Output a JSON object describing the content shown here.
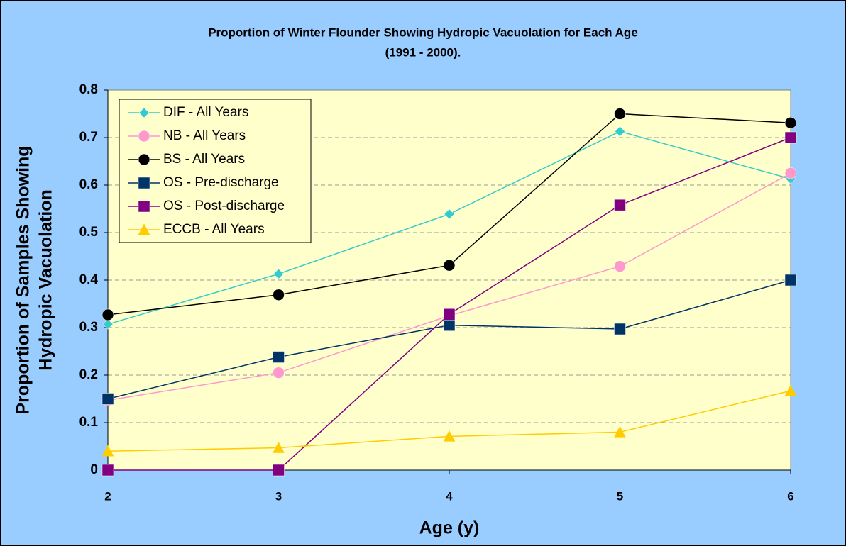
{
  "chart_data": {
    "type": "line",
    "title": [
      "Proportion of Winter Flounder Showing Hydropic Vacuolation for Each Age",
      "(1991 - 2000)."
    ],
    "xlabel": "Age (y)",
    "ylabel": [
      "Proportion of Samples Showing",
      "Hydropic Vacuolation"
    ],
    "x": [
      2,
      3,
      4,
      5,
      6
    ],
    "xlim": [
      2,
      6
    ],
    "xticks": [
      2,
      3,
      4,
      5,
      6
    ],
    "ylim": [
      0,
      0.8
    ],
    "yticks": [
      0,
      0.1,
      0.2,
      0.3,
      0.4,
      0.5,
      0.6,
      0.7,
      0.8
    ],
    "grid": true,
    "legend": "top-left",
    "series": [
      {
        "name": "DIF - All Years",
        "color": "#33cccc",
        "marker": "diamond",
        "values": [
          0.307,
          0.413,
          0.539,
          0.713,
          0.613
        ]
      },
      {
        "name": "NB - All Years",
        "color": "#ff99cc",
        "marker": "circle",
        "values": [
          0.147,
          0.205,
          0.325,
          0.429,
          0.625
        ]
      },
      {
        "name": "BS - All Years",
        "color": "#000000",
        "marker": "circle",
        "values": [
          0.327,
          0.369,
          0.431,
          0.75,
          0.731
        ]
      },
      {
        "name": "OS - Pre-discharge",
        "color": "#003366",
        "marker": "square",
        "values": [
          0.15,
          0.238,
          0.305,
          0.297,
          0.4
        ]
      },
      {
        "name": "OS - Post-discharge",
        "color": "#800080",
        "marker": "square",
        "values": [
          0,
          0,
          0.328,
          0.558,
          0.7
        ]
      },
      {
        "name": "ECCB - All Years",
        "color": "#ffcc00",
        "marker": "triangle",
        "values": [
          0.04,
          0.047,
          0.071,
          0.08,
          0.167
        ]
      }
    ]
  }
}
